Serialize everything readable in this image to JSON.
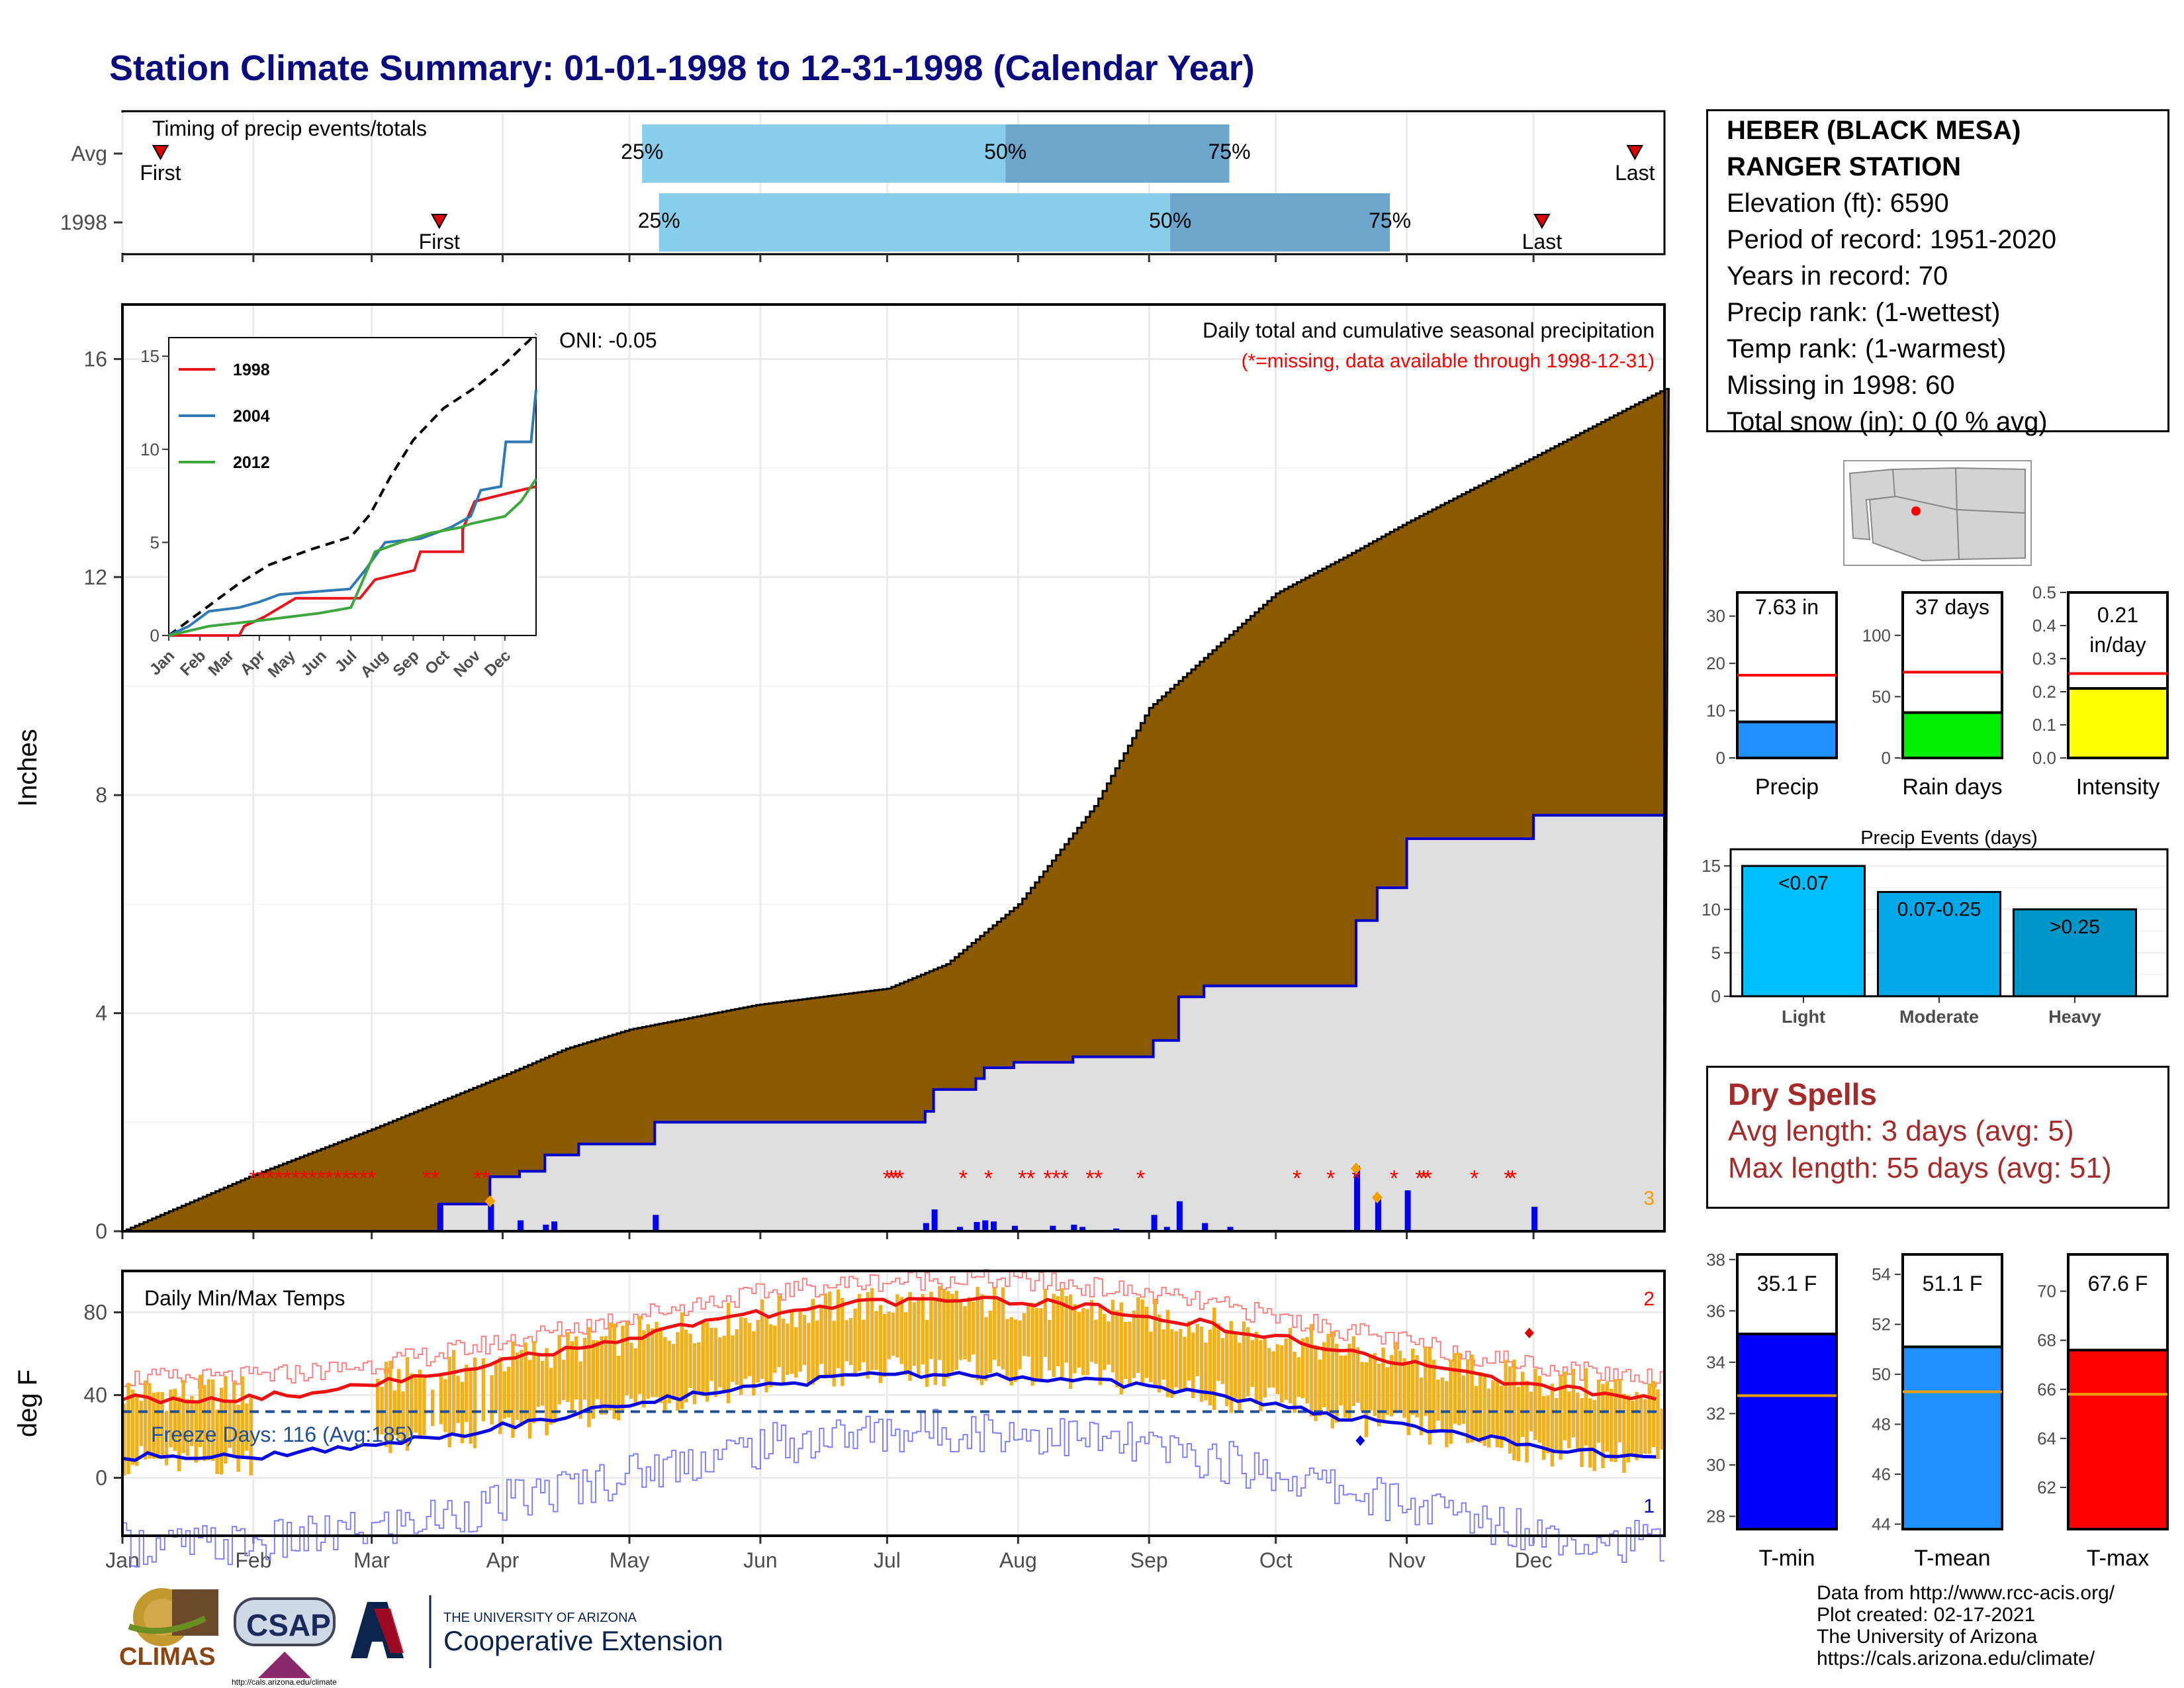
{
  "title": "Station Climate Summary: 01-01-1998 to 12-31-1998 (Calendar Year)",
  "timing": {
    "label": "Timing of precip events/totals",
    "rows": [
      {
        "name": "Avg",
        "first_label": "First",
        "last_label": "Last",
        "first_day": 9,
        "last_day": 358,
        "p25": 123,
        "p50": 209,
        "p75": 262,
        "p25_label": "25%",
        "p50_label": "50%",
        "p75_label": "75%"
      },
      {
        "name": "1998",
        "first_label": "First",
        "last_label": "Last",
        "first_day": 75,
        "last_day": 336,
        "p25": 127,
        "p50": 248,
        "p75": 300,
        "p25_label": "25%",
        "p50_label": "50%",
        "p75_label": "75%"
      }
    ],
    "colors": {
      "light": "#87ceeb",
      "dark": "#6ca6cd",
      "marker": "#e00000"
    }
  },
  "station": {
    "name1": "HEBER (BLACK MESA)",
    "name2": "RANGER STATION",
    "lines": [
      "Elevation (ft): 6590",
      "Period of record: 1951-2020",
      "Years in record: 70",
      "Precip rank:  (1-wettest)",
      "Temp rank:  (1-warmest)",
      "Missing in 1998: 60",
      "Total snow (in): 0 (0 % avg)"
    ]
  },
  "precip_chart": {
    "ylabel": "Inches",
    "header": "Daily total and cumulative seasonal precipitation",
    "missing_note": "(*=missing, data available through 1998-12-31)",
    "oni": "ONI: -0.05",
    "corner_number": "3",
    "colors": {
      "avg_fill": "#8b5a00",
      "obs_fill": "#dedede",
      "obs_line": "#0000cc",
      "daily_bar": "#0000ee",
      "missing": "#ff0000",
      "extreme": "#f0a000"
    }
  },
  "inset_chart": {
    "legend": [
      {
        "name": "1998",
        "color": "#e8141c"
      },
      {
        "name": "2004",
        "color": "#2e7ab6"
      },
      {
        "name": "2012",
        "color": "#3ca83c"
      }
    ],
    "yticks": [
      "0",
      "5",
      "10",
      "15"
    ],
    "months": [
      "Jan",
      "Feb",
      "Mar",
      "Apr",
      "May",
      "Jun",
      "Jul",
      "Aug",
      "Sep",
      "Oct",
      "Nov",
      "Dec"
    ]
  },
  "temp_chart": {
    "ylabel": "deg F",
    "header": "Daily Min/Max Temps",
    "freeze_label": "Freeze Days: 116 (Avg:185)",
    "corner_top": "2",
    "corner_bottom": "1",
    "colors": {
      "bar": "#f0b020",
      "max_line": "#ee1111",
      "min_line": "#0a0ae0",
      "freeze": "#1f4e9a"
    }
  },
  "months": [
    "Jan",
    "Feb",
    "Mar",
    "Apr",
    "May",
    "Jun",
    "Jul",
    "Aug",
    "Sep",
    "Oct",
    "Nov",
    "Dec"
  ],
  "stat_bars": [
    {
      "name": "Precip",
      "value_label": "7.63 in",
      "value": 7.63,
      "avg": 17.5,
      "ymax": 35,
      "ticks": [
        "0",
        "10",
        "20",
        "30"
      ],
      "tickvals": [
        0,
        10,
        20,
        30
      ],
      "color": "#1e90ff"
    },
    {
      "name": "Rain days",
      "value_label": "37 days",
      "value": 37,
      "avg": 70,
      "ymax": 135,
      "ticks": [
        "0",
        "50",
        "100"
      ],
      "tickvals": [
        0,
        50,
        100
      ],
      "color": "#00ee00"
    },
    {
      "name": "Intensity",
      "value_label": "0.21 in/day",
      "value": 0.21,
      "avg": 0.255,
      "ymax": 0.5,
      "ticks": [
        "0.0",
        "0.1",
        "0.2",
        "0.3",
        "0.4",
        "0.5"
      ],
      "tickvals": [
        0,
        0.1,
        0.2,
        0.3,
        0.4,
        0.5
      ],
      "color": "#ffff00"
    }
  ],
  "events_chart": {
    "title": "Precip Events (days)",
    "type": "bar",
    "categories": [
      "Light",
      "Moderate",
      "Heavy"
    ],
    "bar_labels": [
      "<0.07",
      "0.07-0.25",
      ">0.25"
    ],
    "values": [
      15,
      12,
      10
    ],
    "yticks": [
      "0",
      "5",
      "10",
      "15"
    ],
    "colors": [
      "#00bfff",
      "#00a8e8",
      "#0096c8"
    ]
  },
  "dry_spells": {
    "title": "Dry Spells",
    "avg_length": "Avg length: 3 days (avg: 5)",
    "max_length": "Max length: 55 days (avg: 51)"
  },
  "temp_bars": [
    {
      "name": "T-min",
      "value_label": "35.1 F",
      "value": 35.1,
      "avg": 32.7,
      "ylim": [
        27.5,
        38.2
      ],
      "ticks": [
        "28",
        "30",
        "32",
        "34",
        "36",
        "38"
      ],
      "tickvals": [
        28,
        30,
        32,
        34,
        36,
        38
      ],
      "color": "#0000ff"
    },
    {
      "name": "T-mean",
      "value_label": "51.1 F",
      "value": 51.1,
      "avg": 49.3,
      "ylim": [
        43.8,
        54.8
      ],
      "ticks": [
        "44",
        "46",
        "48",
        "50",
        "52",
        "54"
      ],
      "tickvals": [
        44,
        46,
        48,
        50,
        52,
        54
      ],
      "color": "#1e90ff"
    },
    {
      "name": "T-max",
      "value_label": "67.6 F",
      "value": 67.6,
      "avg": 65.8,
      "ylim": [
        60.3,
        71.5
      ],
      "ticks": [
        "62",
        "64",
        "66",
        "68",
        "70"
      ],
      "tickvals": [
        62,
        64,
        66,
        68,
        70
      ],
      "color": "#ff0000"
    }
  ],
  "credits": [
    "Data from http://www.rcc-acis.org/",
    "Plot created: 02-17-2021",
    "The University of Arizona",
    "https://cals.arizona.edu/climate/"
  ],
  "logos": {
    "climas": "CLIMAS",
    "csap": "CSAP",
    "csap_url": "http://cals.arizona.edu/climate",
    "ua_small": "THE UNIVERSITY OF ARIZONA",
    "ua_big": "Cooperative Extension"
  }
}
